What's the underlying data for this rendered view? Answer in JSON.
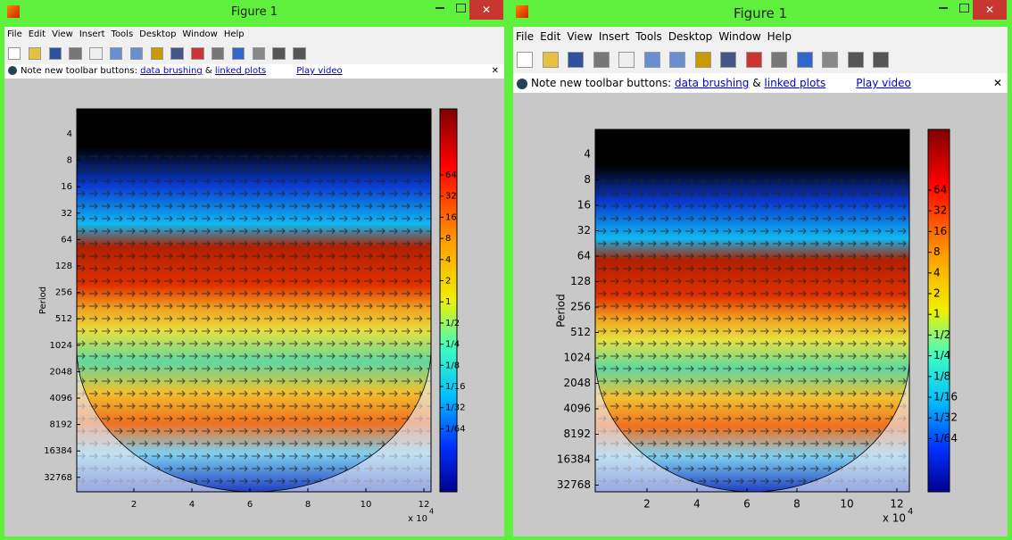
{
  "windows": [
    {
      "title": "Figure 1",
      "menu": [
        "File",
        "Edit",
        "View",
        "Insert",
        "Tools",
        "Desktop",
        "Window",
        "Help"
      ],
      "info": {
        "text": "Note new toolbar buttons:",
        "link1": "data brushing",
        "amp": "&",
        "link2": "linked plots",
        "video": "Play video"
      },
      "plot": {
        "ylabel": "Period",
        "yticks": [
          4,
          8,
          16,
          32,
          64,
          128,
          256,
          512,
          1024,
          2048,
          4096,
          8192,
          16384,
          32768
        ],
        "xticks": [
          2,
          4,
          6,
          8,
          10,
          12
        ],
        "x_exponent": {
          "base": "x 10",
          "power": "4"
        },
        "colorbar_ticks": [
          "64",
          "32",
          "16",
          "8",
          "4",
          "2",
          "1",
          "1/2",
          "1/4",
          "1/8",
          "1/16",
          "1/32",
          "1/64"
        ]
      }
    },
    {
      "title": "Figure 1",
      "menu": [
        "File",
        "Edit",
        "View",
        "Insert",
        "Tools",
        "Desktop",
        "Window",
        "Help"
      ],
      "info": {
        "text": "Note new toolbar buttons:",
        "link1": "data brushing",
        "amp": "&",
        "link2": "linked plots",
        "video": "Play video"
      },
      "plot": {
        "ylabel": "Period",
        "yticks": [
          4,
          8,
          16,
          32,
          64,
          128,
          256,
          512,
          1024,
          2048,
          4096,
          8192,
          16384,
          32768
        ],
        "xticks": [
          2,
          4,
          6,
          8,
          10,
          12
        ],
        "x_exponent": {
          "base": "x 10",
          "power": "4"
        },
        "colorbar_ticks": [
          "64",
          "32",
          "16",
          "8",
          "4",
          "2",
          "1",
          "1/2",
          "1/4",
          "1/8",
          "1/16",
          "1/32",
          "1/64"
        ]
      }
    }
  ]
}
